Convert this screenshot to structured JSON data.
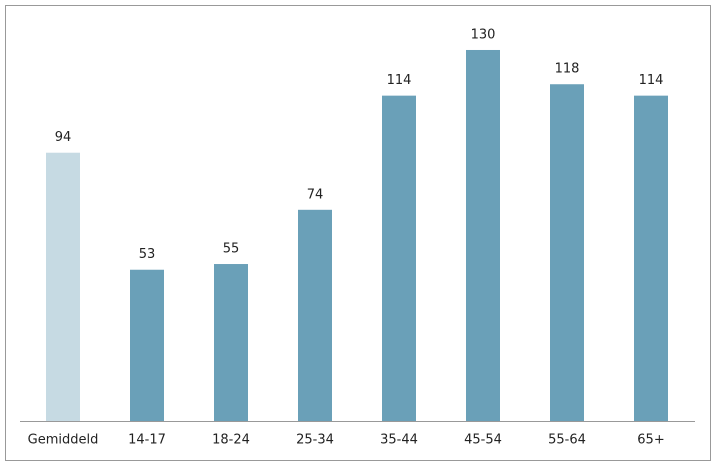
{
  "chart_data": {
    "type": "bar",
    "categories": [
      "Gemiddeld",
      "14-17",
      "18-24",
      "25-34",
      "35-44",
      "45-54",
      "55-64",
      "65+"
    ],
    "values": [
      94,
      53,
      55,
      74,
      114,
      130,
      118,
      114
    ],
    "colors": [
      "#c6dae3",
      "#6aa0b8",
      "#6aa0b8",
      "#6aa0b8",
      "#6aa0b8",
      "#6aa0b8",
      "#6aa0b8",
      "#6aa0b8"
    ]
  }
}
